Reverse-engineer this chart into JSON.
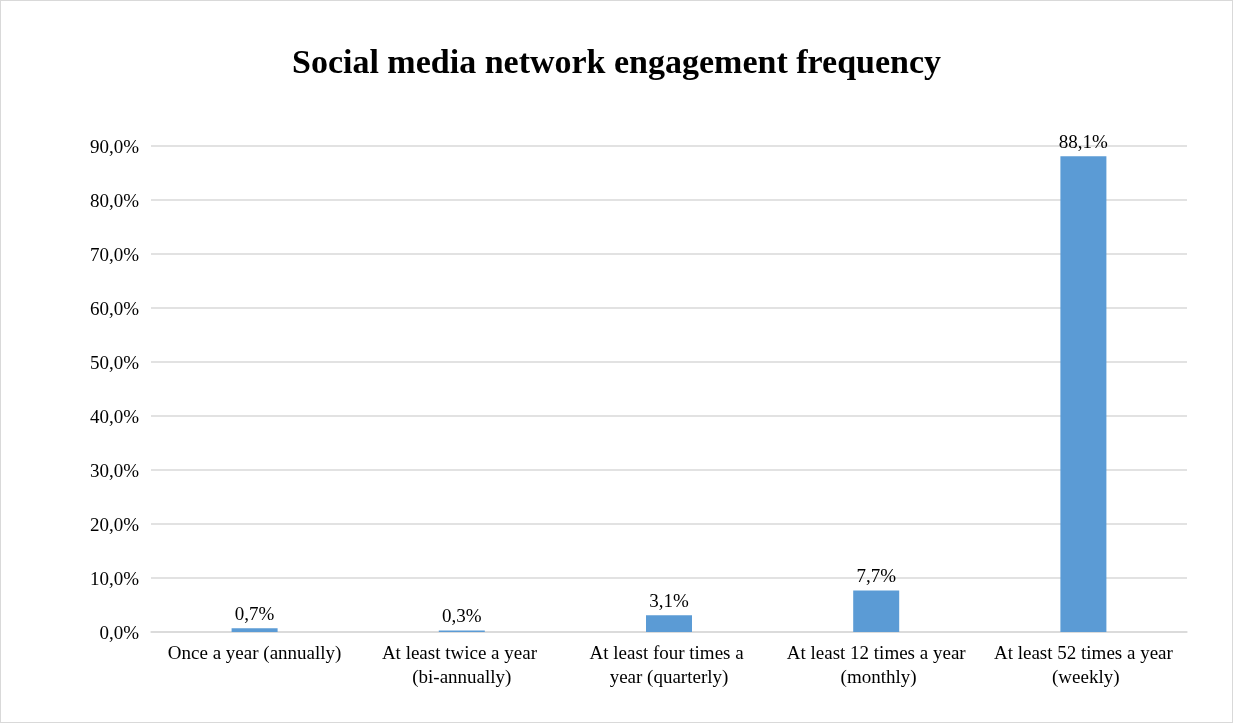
{
  "chart_data": {
    "type": "bar",
    "title": "Social media network engagement frequency",
    "categories": [
      "Once a year (annually)",
      "At least twice a year (bi-annually)",
      "At least four times a year (quarterly)",
      "At least 12 times a year (monthly)",
      "At least 52 times a year (weekly)"
    ],
    "values": [
      0.7,
      0.3,
      3.1,
      7.7,
      88.1
    ],
    "value_labels": [
      "0,7%",
      "0,3%",
      "3,1%",
      "7,7%",
      "88,1%"
    ],
    "color": "#5b9bd5",
    "ylim": [
      0,
      90
    ],
    "yticks": [
      {
        "value": 0,
        "label": "0,0%"
      },
      {
        "value": 10,
        "label": "10,0%"
      },
      {
        "value": 20,
        "label": "20,0%"
      },
      {
        "value": 30,
        "label": "30,0%"
      },
      {
        "value": 40,
        "label": "40,0%"
      },
      {
        "value": 50,
        "label": "50,0%"
      },
      {
        "value": 60,
        "label": "60,0%"
      },
      {
        "value": 70,
        "label": "70,0%"
      },
      {
        "value": 80,
        "label": "80,0%"
      },
      {
        "value": 90,
        "label": "90,0%"
      }
    ],
    "grid": "y"
  }
}
